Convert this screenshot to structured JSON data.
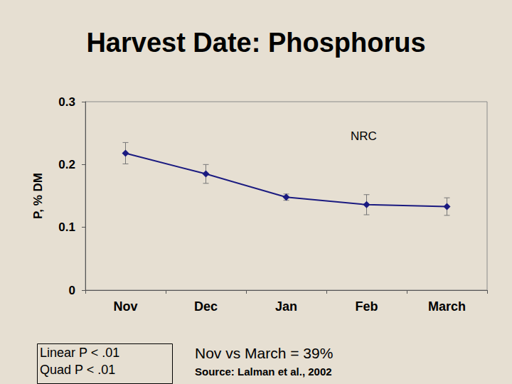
{
  "chart_data": {
    "type": "line",
    "title": "Harvest Date: Phosphorus",
    "y_label": "P, % DM",
    "categories": [
      "Nov",
      "Dec",
      "Jan",
      "Feb",
      "March"
    ],
    "values": [
      0.218,
      0.185,
      0.148,
      0.136,
      0.133
    ],
    "errors": [
      0.017,
      0.015,
      0.005,
      0.016,
      0.014
    ],
    "color": "#1a1a80",
    "marker": "diamond",
    "line_style": "solid",
    "ylim": [
      0,
      0.3
    ],
    "yticks": [
      0,
      0.1,
      0.2,
      0.3
    ],
    "grid": false,
    "annotations": [
      "NRC"
    ],
    "stats": [
      "Linear P < .01",
      "Quad P < .01"
    ],
    "footnote": "Nov vs March = 39%",
    "source": "Source: Lalman et al., 2002"
  }
}
